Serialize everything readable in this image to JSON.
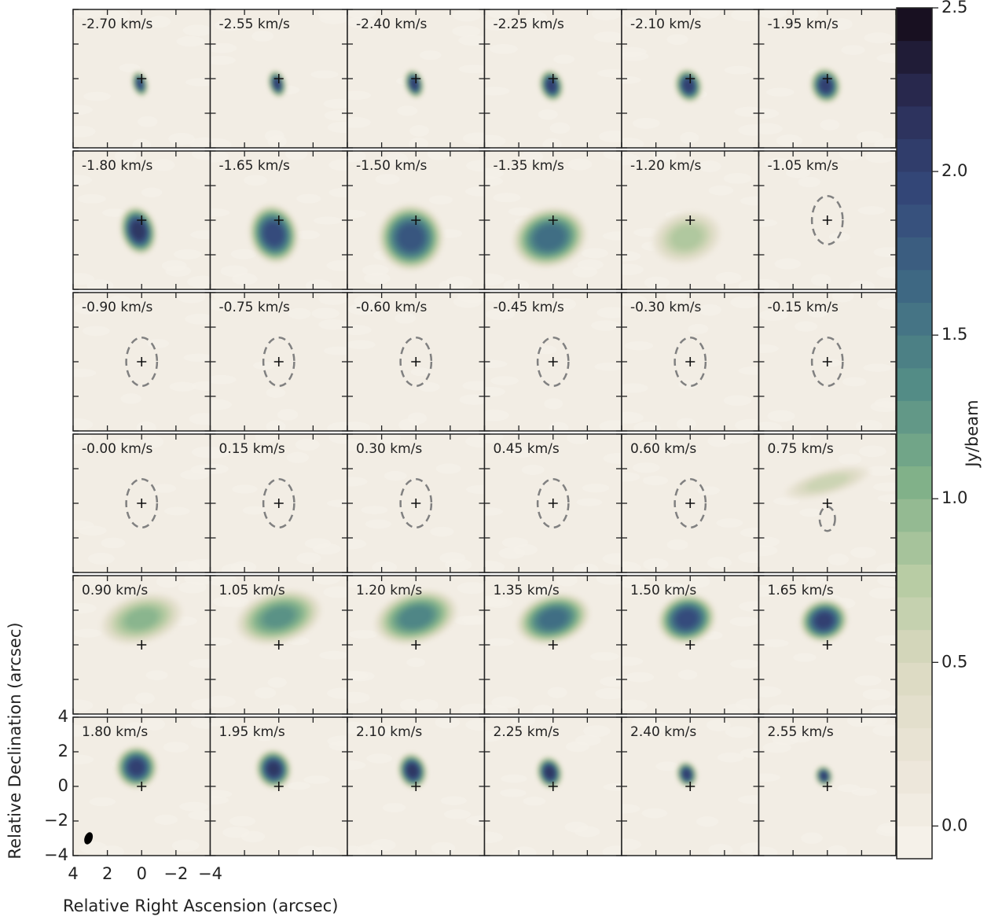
{
  "chart_data": {
    "type": "channel-map",
    "xlabel": "Relative Right Ascension (arcsec)",
    "ylabel": "Relative Declination (arcsec)",
    "xlim": [
      4,
      -4
    ],
    "ylim": [
      -4,
      4
    ],
    "xticks": [
      4,
      2,
      0,
      {
        "value": -2,
        "label": "−2"
      },
      {
        "value": -4,
        "label": "−4"
      }
    ],
    "yticks": [
      {
        "value": -4,
        "label": "−4"
      },
      {
        "value": -2,
        "label": "−2"
      },
      0,
      2,
      4
    ],
    "channels": [
      "-2.70 km/s",
      "-2.55 km/s",
      "-2.40 km/s",
      "-2.25 km/s",
      "-2.10 km/s",
      "-1.95 km/s",
      "-1.80 km/s",
      "-1.65 km/s",
      "-1.50 km/s",
      "-1.35 km/s",
      "-1.20 km/s",
      "-1.05 km/s",
      "-0.90 km/s",
      "-0.75 km/s",
      "-0.60 km/s",
      "-0.45 km/s",
      "-0.30 km/s",
      "-0.15 km/s",
      "-0.00 km/s",
      "0.15 km/s",
      "0.30 km/s",
      "0.45 km/s",
      "0.60 km/s",
      "0.75 km/s",
      "0.90 km/s",
      "1.05 km/s",
      "1.20 km/s",
      "1.35 km/s",
      "1.50 km/s",
      "1.65 km/s",
      "1.80 km/s",
      "1.95 km/s",
      "2.10 km/s",
      "2.25 km/s",
      "2.40 km/s",
      "2.55 km/s"
    ],
    "colorbar": {
      "label": "Jy/beam",
      "clim": [
        -0.1,
        2.5
      ],
      "ticks": [
        {
          "value": 0,
          "label": "0.0"
        },
        {
          "value": 0.5,
          "label": "0.5"
        },
        {
          "value": 1,
          "label": "1.0"
        },
        {
          "value": 1.5,
          "label": "1.5"
        },
        {
          "value": 2,
          "label": "2.0"
        },
        2.5
      ],
      "colormap": [
        "#f7f3ed",
        "#ebe5d8",
        "#dcdac2",
        "#b6cba2",
        "#80b089",
        "#538d86",
        "#3f6a84",
        "#34497b",
        "#2b2d56",
        "#140a16"
      ]
    }
  }
}
